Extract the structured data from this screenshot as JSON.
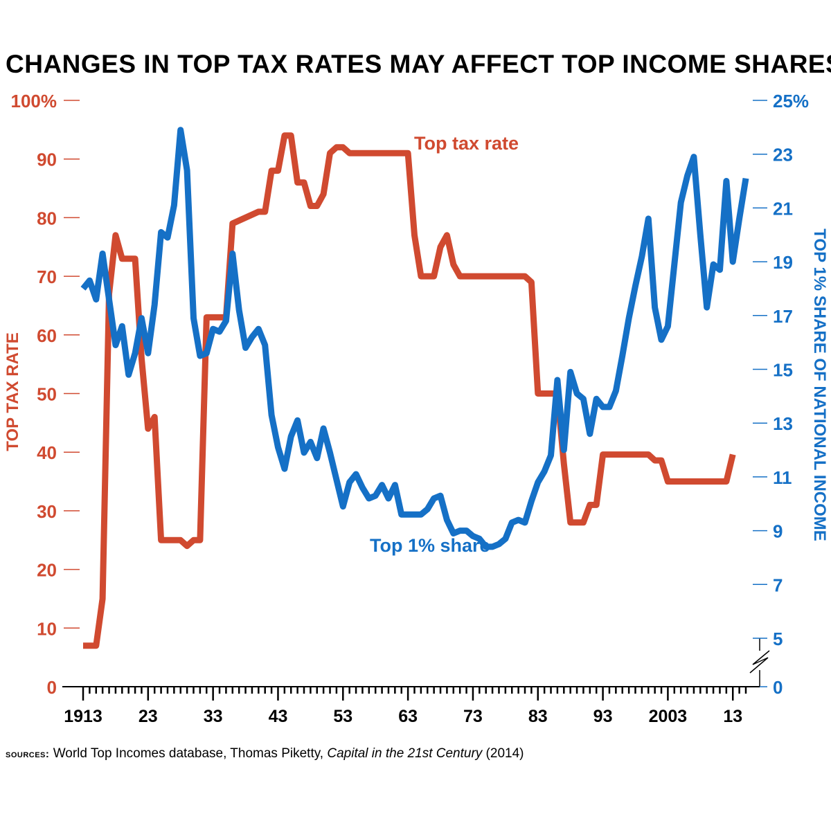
{
  "title": "CHANGES IN TOP TAX RATES MAY AFFECT TOP INCOME SHARES",
  "colors": {
    "tax": "#d04a30",
    "share": "#1570c6",
    "axis": "#000000"
  },
  "source": {
    "label": "SOURCES:",
    "text": "World Top Incomes database, Thomas Piketty, ",
    "book": "Capital in the 21st Century",
    "year": " (2014)"
  },
  "chart_data": {
    "type": "line",
    "x_range": [
      1913,
      2015
    ],
    "x_ticks": [
      1913,
      1923,
      1933,
      1943,
      1953,
      1963,
      1973,
      1983,
      1993,
      2003,
      2013
    ],
    "x_tick_labels": [
      "1913",
      "23",
      "33",
      "43",
      "53",
      "63",
      "73",
      "83",
      "93",
      "2003",
      "13"
    ],
    "left_axis": {
      "label": "TOP TAX RATE",
      "range": [
        0,
        100
      ],
      "ticks": [
        0,
        10,
        20,
        30,
        40,
        50,
        60,
        70,
        80,
        90,
        100
      ],
      "tick_labels": [
        "0",
        "10",
        "20",
        "30",
        "40",
        "50",
        "60",
        "70",
        "80",
        "90",
        "100%"
      ]
    },
    "right_axis": {
      "label": "TOP 1% SHARE OF NATIONAL INCOME",
      "range": [
        5,
        25
      ],
      "ticks": [
        0,
        5,
        7,
        9,
        11,
        13,
        15,
        17,
        19,
        21,
        23,
        25
      ],
      "tick_labels": [
        "0",
        "5",
        "7",
        "9",
        "11",
        "13",
        "15",
        "17",
        "19",
        "21",
        "23",
        "25%"
      ],
      "axis_break": true
    },
    "series": [
      {
        "name": "Top tax rate",
        "axis": "left",
        "color": "#d04a30",
        "points": [
          [
            1913,
            7
          ],
          [
            1915,
            7
          ],
          [
            1916,
            15
          ],
          [
            1917,
            67
          ],
          [
            1918,
            77
          ],
          [
            1919,
            73
          ],
          [
            1921,
            73
          ],
          [
            1922,
            56
          ],
          [
            1923,
            44
          ],
          [
            1924,
            46
          ],
          [
            1925,
            25
          ],
          [
            1928,
            25
          ],
          [
            1929,
            24
          ],
          [
            1930,
            25
          ],
          [
            1931,
            25
          ],
          [
            1932,
            63
          ],
          [
            1935,
            63
          ],
          [
            1936,
            79
          ],
          [
            1940,
            81
          ],
          [
            1941,
            81
          ],
          [
            1942,
            88
          ],
          [
            1943,
            88
          ],
          [
            1944,
            94
          ],
          [
            1945,
            94
          ],
          [
            1946,
            86
          ],
          [
            1947,
            86
          ],
          [
            1948,
            82
          ],
          [
            1949,
            82
          ],
          [
            1950,
            84
          ],
          [
            1951,
            91
          ],
          [
            1952,
            92
          ],
          [
            1953,
            92
          ],
          [
            1954,
            91
          ],
          [
            1963,
            91
          ],
          [
            1964,
            77
          ],
          [
            1965,
            70
          ],
          [
            1967,
            70
          ],
          [
            1968,
            75
          ],
          [
            1969,
            77
          ],
          [
            1970,
            72
          ],
          [
            1971,
            70
          ],
          [
            1981,
            70
          ],
          [
            1982,
            69
          ],
          [
            1983,
            50
          ],
          [
            1986,
            50
          ],
          [
            1987,
            38
          ],
          [
            1988,
            28
          ],
          [
            1990,
            28
          ],
          [
            1991,
            31
          ],
          [
            1992,
            31
          ],
          [
            1993,
            39.6
          ],
          [
            2000,
            39.6
          ],
          [
            2001,
            38.6
          ],
          [
            2002,
            38.6
          ],
          [
            2003,
            35
          ],
          [
            2012,
            35
          ],
          [
            2013,
            39.6
          ]
        ]
      },
      {
        "name": "Top 1% share",
        "axis": "right",
        "color": "#1570c6",
        "points": [
          [
            1913,
            18.0
          ],
          [
            1914,
            18.3
          ],
          [
            1915,
            17.6
          ],
          [
            1916,
            19.3
          ],
          [
            1917,
            17.6
          ],
          [
            1918,
            15.9
          ],
          [
            1919,
            16.6
          ],
          [
            1920,
            14.8
          ],
          [
            1921,
            15.6
          ],
          [
            1922,
            16.9
          ],
          [
            1923,
            15.6
          ],
          [
            1924,
            17.4
          ],
          [
            1925,
            20.1
          ],
          [
            1926,
            19.9
          ],
          [
            1927,
            21.1
          ],
          [
            1928,
            23.9
          ],
          [
            1929,
            22.4
          ],
          [
            1930,
            16.9
          ],
          [
            1931,
            15.5
          ],
          [
            1932,
            15.6
          ],
          [
            1933,
            16.5
          ],
          [
            1934,
            16.4
          ],
          [
            1935,
            16.8
          ],
          [
            1936,
            19.3
          ],
          [
            1937,
            17.2
          ],
          [
            1938,
            15.8
          ],
          [
            1939,
            16.2
          ],
          [
            1940,
            16.5
          ],
          [
            1941,
            15.9
          ],
          [
            1942,
            13.3
          ],
          [
            1943,
            12.1
          ],
          [
            1944,
            11.3
          ],
          [
            1945,
            12.5
          ],
          [
            1946,
            13.1
          ],
          [
            1947,
            11.9
          ],
          [
            1948,
            12.3
          ],
          [
            1949,
            11.7
          ],
          [
            1950,
            12.8
          ],
          [
            1951,
            11.9
          ],
          [
            1952,
            10.9
          ],
          [
            1953,
            9.9
          ],
          [
            1954,
            10.8
          ],
          [
            1955,
            11.1
          ],
          [
            1956,
            10.6
          ],
          [
            1957,
            10.2
          ],
          [
            1958,
            10.3
          ],
          [
            1959,
            10.7
          ],
          [
            1960,
            10.2
          ],
          [
            1961,
            10.7
          ],
          [
            1962,
            9.6
          ],
          [
            1963,
            9.6
          ],
          [
            1964,
            9.6
          ],
          [
            1965,
            9.6
          ],
          [
            1966,
            9.8
          ],
          [
            1967,
            10.2
          ],
          [
            1968,
            10.3
          ],
          [
            1969,
            9.4
          ],
          [
            1970,
            8.9
          ],
          [
            1971,
            9.0
          ],
          [
            1972,
            9.0
          ],
          [
            1973,
            8.8
          ],
          [
            1974,
            8.7
          ],
          [
            1975,
            8.4
          ],
          [
            1976,
            8.4
          ],
          [
            1977,
            8.5
          ],
          [
            1978,
            8.7
          ],
          [
            1979,
            9.3
          ],
          [
            1980,
            9.4
          ],
          [
            1981,
            9.3
          ],
          [
            1982,
            10.1
          ],
          [
            1983,
            10.8
          ],
          [
            1984,
            11.2
          ],
          [
            1985,
            11.8
          ],
          [
            1986,
            14.6
          ],
          [
            1987,
            12.0
          ],
          [
            1988,
            14.9
          ],
          [
            1989,
            14.1
          ],
          [
            1990,
            13.9
          ],
          [
            1991,
            12.6
          ],
          [
            1992,
            13.9
          ],
          [
            1993,
            13.6
          ],
          [
            1994,
            13.6
          ],
          [
            1995,
            14.2
          ],
          [
            1996,
            15.5
          ],
          [
            1997,
            16.9
          ],
          [
            1998,
            18.1
          ],
          [
            1999,
            19.2
          ],
          [
            2000,
            20.6
          ],
          [
            2001,
            17.3
          ],
          [
            2002,
            16.1
          ],
          [
            2003,
            16.6
          ],
          [
            2004,
            18.9
          ],
          [
            2005,
            21.2
          ],
          [
            2006,
            22.2
          ],
          [
            2007,
            22.9
          ],
          [
            2008,
            20.0
          ],
          [
            2009,
            17.3
          ],
          [
            2010,
            18.9
          ],
          [
            2011,
            18.7
          ],
          [
            2012,
            22.0
          ],
          [
            2013,
            19.0
          ],
          [
            2014,
            20.6
          ],
          [
            2015,
            22.1
          ]
        ]
      }
    ],
    "annotations": [
      {
        "text": "Top tax rate",
        "series": "Top tax rate"
      },
      {
        "text": "Top 1% share",
        "series": "Top 1% share"
      }
    ],
    "grid": false,
    "legend": "none (direct labels)"
  }
}
